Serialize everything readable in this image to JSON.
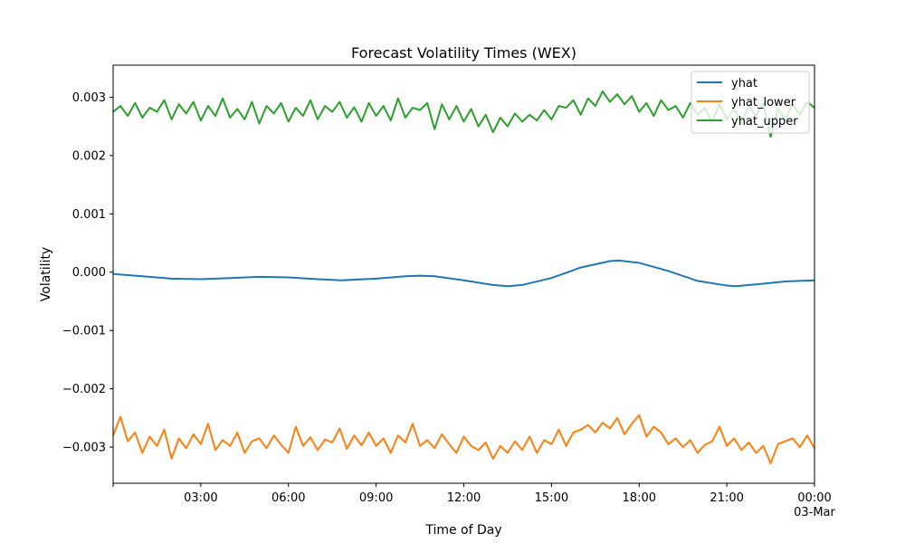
{
  "chart_data": {
    "type": "line",
    "title": "Forecast Volatility Times (WEX)",
    "xlabel": "Time of Day",
    "ylabel": "Volatility",
    "x_ticks": [
      "",
      "03:00",
      "06:00",
      "09:00",
      "12:00",
      "15:00",
      "18:00",
      "21:00",
      "00:00"
    ],
    "x_date_label": "03-Mar",
    "y_ticks": [
      "0.003",
      "0.002",
      "0.001",
      "0.000",
      "−0.001",
      "−0.002",
      "−0.003"
    ],
    "x_range_hours": [
      0,
      24
    ],
    "ylim": [
      -0.00362,
      0.00355
    ],
    "grid": false,
    "legend_position": "top-right",
    "series": [
      {
        "name": "yhat",
        "color": "#1f77b4",
        "x": [
          0,
          1,
          2,
          3,
          4,
          5,
          6,
          7,
          7.8,
          9,
          10,
          10.5,
          11,
          12,
          13,
          13.5,
          14,
          15,
          16,
          17,
          17.3,
          18,
          19,
          20,
          21,
          21.3,
          22,
          23,
          24
        ],
        "y": [
          -3e-05,
          -7e-05,
          -0.00011,
          -0.00012,
          -0.0001,
          -8e-05,
          -9e-05,
          -0.00012,
          -0.00014,
          -0.00011,
          -7e-05,
          -6e-05,
          -7e-05,
          -0.00014,
          -0.00022,
          -0.00024,
          -0.00022,
          -0.0001,
          8e-05,
          0.00019,
          0.0002,
          0.00016,
          2e-05,
          -0.00015,
          -0.00023,
          -0.00024,
          -0.00021,
          -0.00016,
          -0.00014
        ]
      },
      {
        "name": "yhat_lower",
        "color": "#ff7f0e",
        "x": [
          0,
          0.25,
          0.5,
          0.75,
          1,
          1.25,
          1.5,
          1.75,
          2,
          2.25,
          2.5,
          2.75,
          3,
          3.25,
          3.5,
          3.75,
          4,
          4.25,
          4.5,
          4.75,
          5,
          5.25,
          5.5,
          5.75,
          6,
          6.25,
          6.5,
          6.75,
          7,
          7.25,
          7.5,
          7.75,
          8,
          8.25,
          8.5,
          8.75,
          9,
          9.25,
          9.5,
          9.75,
          10,
          10.25,
          10.5,
          10.75,
          11,
          11.25,
          11.5,
          11.75,
          12,
          12.25,
          12.5,
          12.75,
          13,
          13.25,
          13.5,
          13.75,
          14,
          14.25,
          14.5,
          14.75,
          15,
          15.25,
          15.5,
          15.75,
          16,
          16.25,
          16.5,
          16.75,
          17,
          17.25,
          17.5,
          17.75,
          18,
          18.25,
          18.5,
          18.75,
          19,
          19.25,
          19.5,
          19.75,
          20,
          20.25,
          20.5,
          20.75,
          21,
          21.25,
          21.5,
          21.75,
          22,
          22.25,
          22.5,
          22.75,
          23,
          23.25,
          23.5,
          23.75,
          24
        ],
        "y": [
          -0.0028,
          -0.00248,
          -0.0029,
          -0.00275,
          -0.0031,
          -0.00282,
          -0.00298,
          -0.0027,
          -0.0032,
          -0.00285,
          -0.00302,
          -0.00278,
          -0.00295,
          -0.0026,
          -0.00305,
          -0.00288,
          -0.00298,
          -0.00275,
          -0.0031,
          -0.0029,
          -0.00285,
          -0.00302,
          -0.0028,
          -0.00296,
          -0.0031,
          -0.00265,
          -0.00298,
          -0.00283,
          -0.00305,
          -0.00287,
          -0.00292,
          -0.00268,
          -0.00303,
          -0.0028,
          -0.00297,
          -0.00275,
          -0.00298,
          -0.00285,
          -0.0031,
          -0.0028,
          -0.00292,
          -0.0026,
          -0.00298,
          -0.00288,
          -0.00302,
          -0.00278,
          -0.00295,
          -0.0031,
          -0.00282,
          -0.00298,
          -0.00305,
          -0.00292,
          -0.0032,
          -0.00298,
          -0.0031,
          -0.0029,
          -0.00305,
          -0.00282,
          -0.0031,
          -0.00288,
          -0.00295,
          -0.0027,
          -0.00298,
          -0.00275,
          -0.0027,
          -0.00262,
          -0.00275,
          -0.00258,
          -0.00268,
          -0.0025,
          -0.00278,
          -0.0026,
          -0.00245,
          -0.00282,
          -0.00265,
          -0.00275,
          -0.00295,
          -0.00285,
          -0.003,
          -0.00288,
          -0.0031,
          -0.00296,
          -0.0029,
          -0.00265,
          -0.00298,
          -0.00285,
          -0.00305,
          -0.00292,
          -0.0031,
          -0.00298,
          -0.00328,
          -0.00295,
          -0.0029,
          -0.00285,
          -0.003,
          -0.0028,
          -0.00302
        ]
      },
      {
        "name": "yhat_upper",
        "color": "#2ca02c",
        "x": [
          0,
          0.25,
          0.5,
          0.75,
          1,
          1.25,
          1.5,
          1.75,
          2,
          2.25,
          2.5,
          2.75,
          3,
          3.25,
          3.5,
          3.75,
          4,
          4.25,
          4.5,
          4.75,
          5,
          5.25,
          5.5,
          5.75,
          6,
          6.25,
          6.5,
          6.75,
          7,
          7.25,
          7.5,
          7.75,
          8,
          8.25,
          8.5,
          8.75,
          9,
          9.25,
          9.5,
          9.75,
          10,
          10.25,
          10.5,
          10.75,
          11,
          11.25,
          11.5,
          11.75,
          12,
          12.25,
          12.5,
          12.75,
          13,
          13.25,
          13.5,
          13.75,
          14,
          14.25,
          14.5,
          14.75,
          15,
          15.25,
          15.5,
          15.75,
          16,
          16.25,
          16.5,
          16.75,
          17,
          17.25,
          17.5,
          17.75,
          18,
          18.25,
          18.5,
          18.75,
          19,
          19.25,
          19.5,
          19.75,
          20,
          20.25,
          20.5,
          20.75,
          21,
          21.25,
          21.5,
          21.75,
          22,
          22.25,
          22.5,
          22.75,
          23,
          23.25,
          23.5,
          23.75,
          24
        ],
        "y": [
          0.00275,
          0.00285,
          0.00268,
          0.0029,
          0.00265,
          0.00282,
          0.00275,
          0.00295,
          0.00262,
          0.00288,
          0.00272,
          0.00292,
          0.0026,
          0.00285,
          0.00268,
          0.00298,
          0.00265,
          0.0028,
          0.00262,
          0.00292,
          0.00255,
          0.00285,
          0.00272,
          0.0029,
          0.00258,
          0.00282,
          0.00268,
          0.00295,
          0.00262,
          0.00285,
          0.00275,
          0.00292,
          0.00265,
          0.00283,
          0.00258,
          0.0029,
          0.00268,
          0.00285,
          0.0026,
          0.00298,
          0.00265,
          0.00282,
          0.00278,
          0.0029,
          0.00245,
          0.00288,
          0.00262,
          0.00285,
          0.00258,
          0.0028,
          0.0025,
          0.0027,
          0.0024,
          0.00265,
          0.0025,
          0.00272,
          0.00258,
          0.0027,
          0.0026,
          0.00278,
          0.00262,
          0.00285,
          0.00282,
          0.00295,
          0.0027,
          0.00298,
          0.00285,
          0.0031,
          0.00292,
          0.00305,
          0.00288,
          0.00302,
          0.00275,
          0.0029,
          0.00268,
          0.00295,
          0.00278,
          0.00285,
          0.00265,
          0.0029,
          0.0027,
          0.00282,
          0.00258,
          0.00288,
          0.00262,
          0.0028,
          0.00255,
          0.00285,
          0.00268,
          0.0029,
          0.00232,
          0.0028,
          0.00262,
          0.00288,
          0.0027,
          0.00292,
          0.00282
        ]
      }
    ]
  }
}
